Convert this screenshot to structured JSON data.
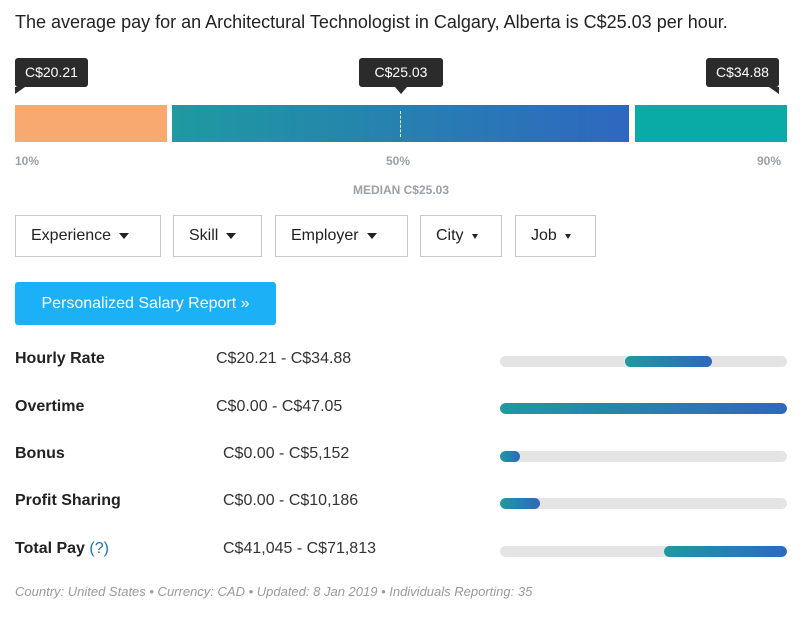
{
  "headline": "The average pay for an Architectural Technologist in Calgary, Alberta is C$25.03 per hour.",
  "range": {
    "low_tip": "C$20.21",
    "median_tip": "C$25.03",
    "high_tip": "C$34.88",
    "p10_label": "10%",
    "p50_label": "50%",
    "p90_label": "90%",
    "median_label": "MEDIAN C$25.03",
    "colors": {
      "low": "#f8a96f",
      "mid_start": "#1e9aa0",
      "mid_end": "#2f67c0",
      "high": "#0aaba6"
    }
  },
  "filters": [
    {
      "label": "Experience"
    },
    {
      "label": "Skill"
    },
    {
      "label": "Employer"
    },
    {
      "label": "City"
    },
    {
      "label": "Job"
    }
  ],
  "cta": {
    "label": "Personalized Salary Report »",
    "color": "#1cb0f6"
  },
  "pay_rows": [
    {
      "label": "Hourly Rate",
      "range": "C$20.21 - C$34.88",
      "fill_start": 0.435,
      "fill_end": 0.74
    },
    {
      "label": "Overtime",
      "range": "C$0.00 - C$47.05",
      "fill_start": 0.0,
      "fill_end": 1.0
    },
    {
      "label": "Bonus",
      "range": "C$0.00 - C$5,152",
      "fill_start": 0.0,
      "fill_end": 0.07
    },
    {
      "label": "Profit Sharing",
      "range": "C$0.00 - C$10,186",
      "fill_start": 0.0,
      "fill_end": 0.14
    },
    {
      "label": "Total Pay",
      "help": "?",
      "range": "C$41,045 - C$71,813",
      "fill_start": 0.57,
      "fill_end": 1.0
    }
  ],
  "footer": "Country: United States • Currency: CAD • Updated: 8 Jan 2019 • Individuals Reporting: 35"
}
